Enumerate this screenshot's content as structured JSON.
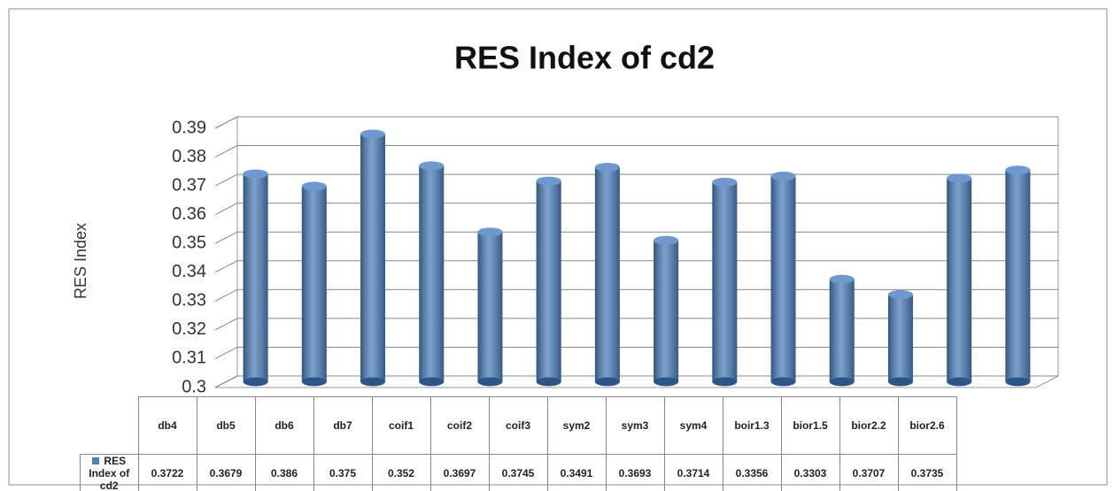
{
  "chart_data": {
    "type": "bar",
    "title": "RES Index of cd2",
    "y_label": "RES Index",
    "categories": [
      "db4",
      "db5",
      "db6",
      "db7",
      "coif1",
      "coif2",
      "coif3",
      "sym2",
      "sym3",
      "sym4",
      "boir1.3",
      "bior1.5",
      "bior2.2",
      "bior2.6"
    ],
    "series": [
      {
        "name": "RES Index of cd2",
        "color": "#4f81bd",
        "values": [
          0.3722,
          0.3679,
          0.386,
          0.375,
          0.352,
          0.3697,
          0.3745,
          0.3491,
          0.3693,
          0.3714,
          0.3356,
          0.3303,
          0.3707,
          0.3735
        ]
      }
    ],
    "ylim": [
      0.3,
      0.39
    ],
    "yticks": [
      0.3,
      0.31,
      0.32,
      0.33,
      0.34,
      0.35,
      0.36,
      0.37,
      0.38,
      0.39
    ],
    "grid": true
  }
}
